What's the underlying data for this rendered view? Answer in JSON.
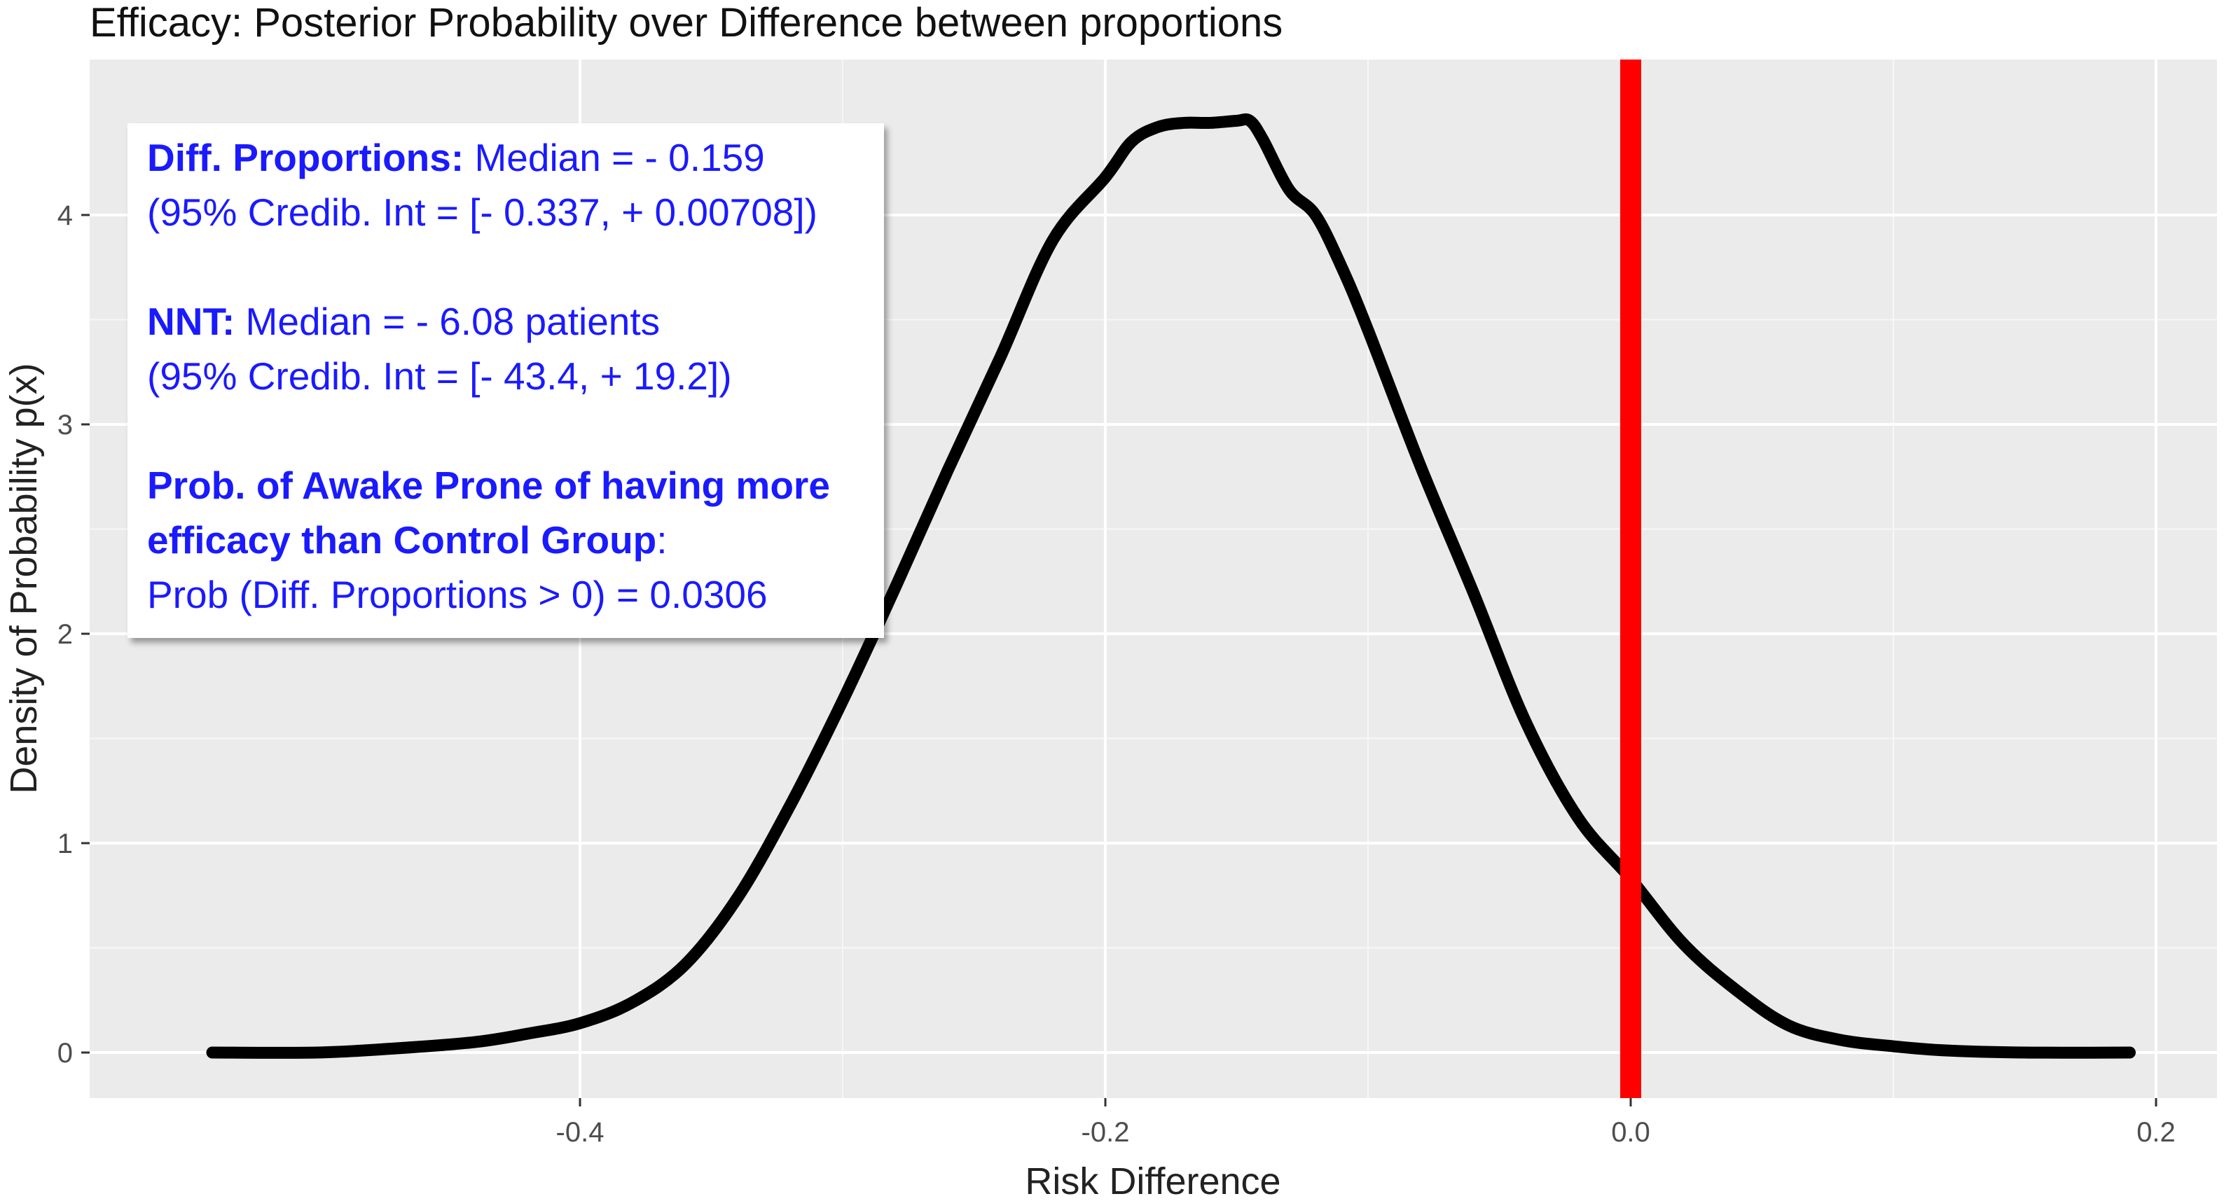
{
  "chart_data": {
    "type": "line",
    "title": "Efficacy: Posterior Probability over Difference between proportions",
    "xlabel": "Risk Difference",
    "ylabel": "Density of Probability p(x)",
    "xlim": [
      -0.5,
      0.2
    ],
    "ylim": [
      -0.2,
      4.65
    ],
    "x_ticks": [
      -0.4,
      -0.2,
      0.0,
      0.2
    ],
    "x_tick_labels": [
      "-0.4",
      "-0.2",
      "0.0",
      "0.2"
    ],
    "y_ticks": [
      0,
      1,
      2,
      3,
      4
    ],
    "y_tick_labels": [
      "0",
      "1",
      "2",
      "3",
      "4"
    ],
    "grid": true,
    "background": "#ebebeb",
    "series": [
      {
        "color": "#000000",
        "x": [
          -0.54,
          -0.5,
          -0.47,
          -0.44,
          -0.42,
          -0.4,
          -0.38,
          -0.36,
          -0.34,
          -0.32,
          -0.3,
          -0.28,
          -0.26,
          -0.24,
          -0.22,
          -0.2,
          -0.19,
          -0.18,
          -0.17,
          -0.16,
          -0.15,
          -0.145,
          -0.14,
          -0.13,
          -0.12,
          -0.11,
          -0.1,
          -0.08,
          -0.06,
          -0.04,
          -0.02,
          0.0,
          0.02,
          0.04,
          0.06,
          0.08,
          0.1,
          0.12,
          0.15,
          0.19
        ],
        "y": [
          0.0,
          0.0,
          0.02,
          0.05,
          0.09,
          0.14,
          0.24,
          0.42,
          0.74,
          1.18,
          1.68,
          2.22,
          2.78,
          3.32,
          3.88,
          4.18,
          4.35,
          4.42,
          4.44,
          4.44,
          4.45,
          4.45,
          4.36,
          4.12,
          4.0,
          3.75,
          3.45,
          2.8,
          2.2,
          1.58,
          1.12,
          0.83,
          0.52,
          0.3,
          0.13,
          0.06,
          0.03,
          0.01,
          0.0,
          0.0
        ]
      }
    ],
    "reference_line": {
      "x": 0.0,
      "color": "#ff0000"
    }
  },
  "annotation": {
    "diff_label": "Diff. Proportions:",
    "diff_median": " Median = - 0.159",
    "diff_ci": "(95% Credib. Int = [- 0.337, + 0.00708])",
    "nnt_label": "NNT:",
    "nnt_median": " Median = - 6.08 patients",
    "nnt_ci": "(95% Credib. Int = [- 43.4, + 19.2])",
    "prob_label_1": "Prob. of Awake Prone of having more",
    "prob_label_2": "efficacy than Control Group",
    "prob_colon": ":",
    "prob_value": "Prob (Diff. Proportions > 0) = 0.0306",
    "text_color": "#1a1aff"
  }
}
